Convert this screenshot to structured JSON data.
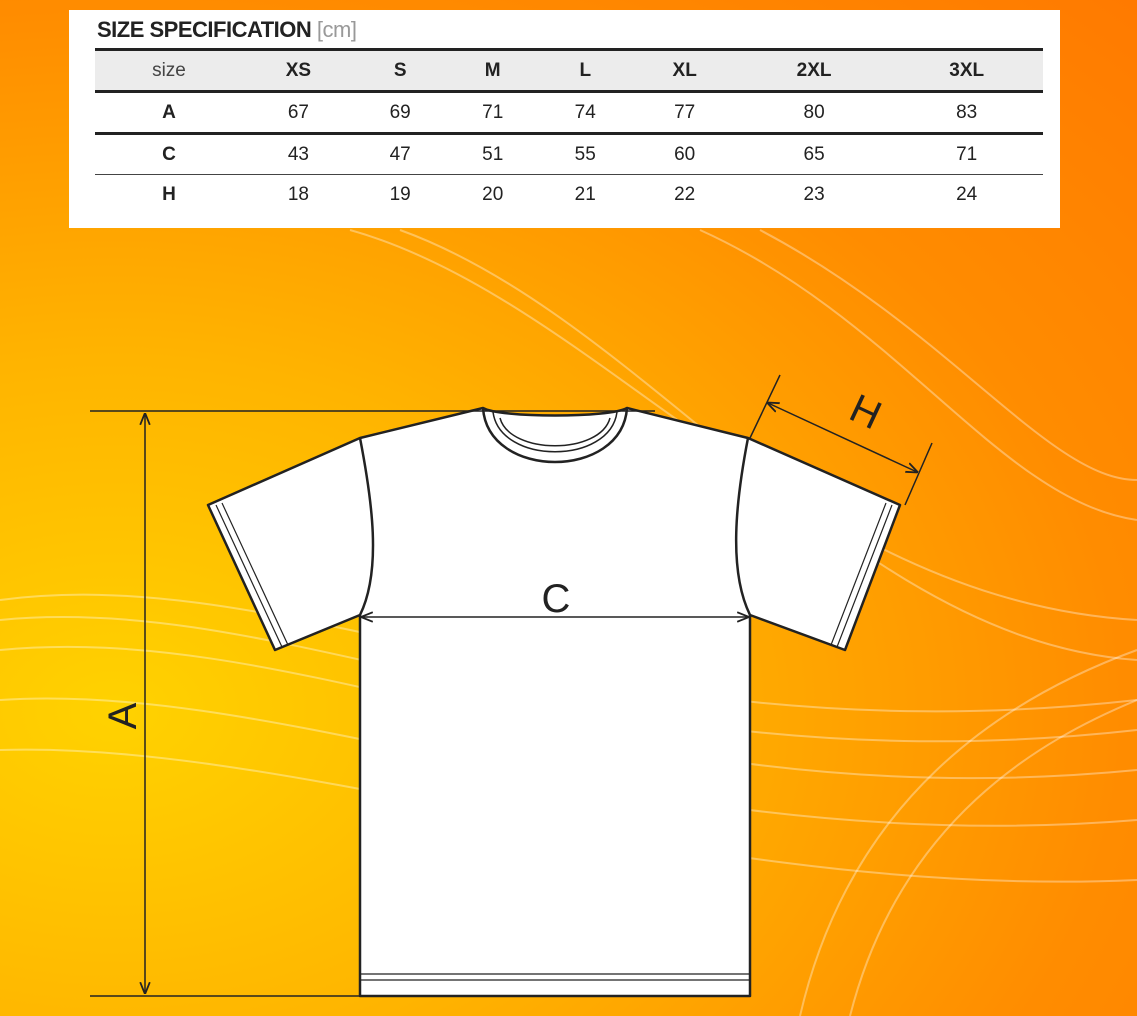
{
  "spec": {
    "title": "SIZE SPECIFICATION",
    "unit": "[cm]",
    "header": [
      "size",
      "XS",
      "S",
      "M",
      "L",
      "XL",
      "2XL",
      "3XL"
    ],
    "rows": [
      {
        "label": "A",
        "values": [
          "67",
          "69",
          "71",
          "74",
          "77",
          "80",
          "83"
        ]
      },
      {
        "label": "C",
        "values": [
          "43",
          "47",
          "51",
          "55",
          "60",
          "65",
          "71"
        ]
      },
      {
        "label": "H",
        "values": [
          "18",
          "19",
          "20",
          "21",
          "22",
          "23",
          "24"
        ]
      }
    ]
  },
  "diagram": {
    "label_a": "A",
    "label_c": "C",
    "label_h": "H"
  },
  "colors": {
    "background": "#ff9a00",
    "line": "#222222"
  }
}
